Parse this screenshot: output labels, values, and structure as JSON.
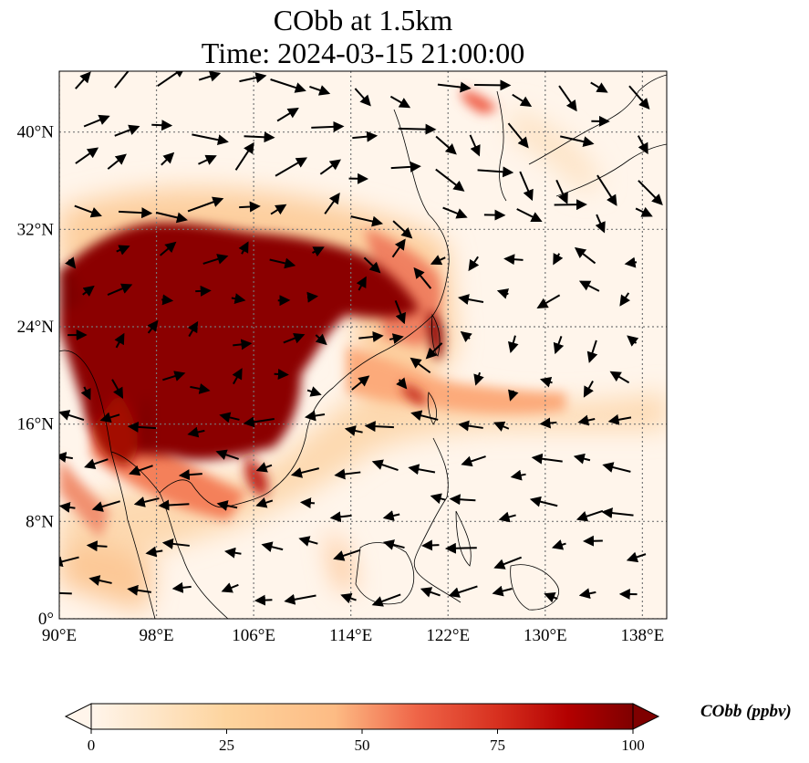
{
  "title_line1": "CObb at 1.5km",
  "title_line2": "Time: 2024-03-15 21:00:00",
  "map": {
    "lon_range": [
      90,
      140
    ],
    "lat_range": [
      0,
      45
    ],
    "lon_ticks": [
      {
        "value": 90,
        "label": "90°E"
      },
      {
        "value": 98,
        "label": "98°E"
      },
      {
        "value": 106,
        "label": "106°E"
      },
      {
        "value": 114,
        "label": "114°E"
      },
      {
        "value": 122,
        "label": "122°E"
      },
      {
        "value": 130,
        "label": "130°E"
      },
      {
        "value": 138,
        "label": "138°E"
      }
    ],
    "lat_ticks": [
      {
        "value": 0,
        "label": "0°"
      },
      {
        "value": 8,
        "label": "8°N"
      },
      {
        "value": 16,
        "label": "16°N"
      },
      {
        "value": 24,
        "label": "24°N"
      },
      {
        "value": 32,
        "label": "32°N"
      },
      {
        "value": 40,
        "label": "40°N"
      }
    ],
    "gridlines": true,
    "field_color_low": "#fff5eb",
    "field_color_high": "#7f0000"
  },
  "colorbar": {
    "label": "CObb (ppbv)",
    "min": 0,
    "max": 100,
    "extend": "both",
    "cmap": "OrRd",
    "ticks": [
      {
        "value": 0,
        "label": "0"
      },
      {
        "value": 25,
        "label": "25"
      },
      {
        "value": 50,
        "label": "50"
      },
      {
        "value": 75,
        "label": "75"
      },
      {
        "value": 100,
        "label": "100"
      }
    ]
  },
  "chart_data": {
    "type": "heatmap",
    "variable": "CObb",
    "units": "ppbv",
    "level": "1.5km",
    "time": "2024-03-15 21:00:00",
    "x_range": [
      90,
      140
    ],
    "y_range": [
      0,
      45
    ],
    "vmin": 0,
    "vmax": 100,
    "hotspots": [
      {
        "lon": 97,
        "lat": 29,
        "value": 100
      },
      {
        "lon": 103,
        "lat": 25,
        "value": 100
      },
      {
        "lon": 100,
        "lat": 20,
        "value": 100
      },
      {
        "lon": 107,
        "lat": 18,
        "value": 100
      },
      {
        "lon": 110,
        "lat": 26,
        "value": 100
      },
      {
        "lon": 104,
        "lat": 16,
        "value": 90
      },
      {
        "lon": 114,
        "lat": 27,
        "value": 80
      },
      {
        "lon": 121,
        "lat": 23.5,
        "value": 95
      },
      {
        "lon": 92,
        "lat": 27,
        "value": 100
      }
    ]
  }
}
